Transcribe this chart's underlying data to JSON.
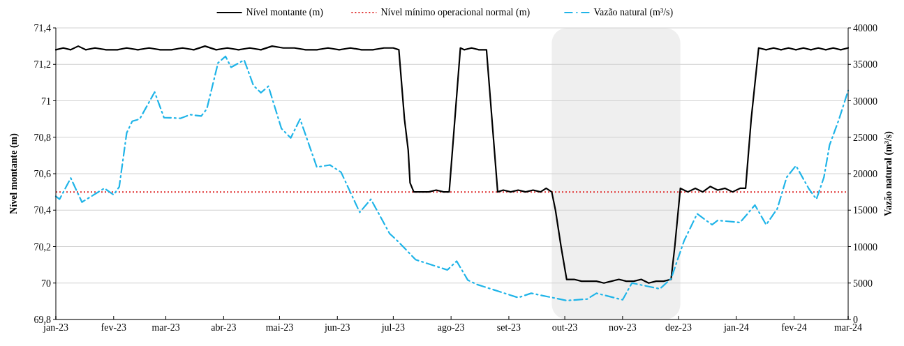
{
  "chart_data": {
    "type": "line",
    "ylabel": "Nível montante (m)",
    "y2label": "Vazão natural (m³/s)",
    "xlim": [
      "2023-01-01",
      "2024-03-01"
    ],
    "xticks": [
      {
        "value": "2023-01-01",
        "label": "jan-23"
      },
      {
        "value": "2023-02-01",
        "label": "fev-23"
      },
      {
        "value": "2023-03-01",
        "label": "mar-23"
      },
      {
        "value": "2023-04-01",
        "label": "abr-23"
      },
      {
        "value": "2023-05-01",
        "label": "mai-23"
      },
      {
        "value": "2023-06-01",
        "label": "jun-23"
      },
      {
        "value": "2023-07-01",
        "label": "jul-23"
      },
      {
        "value": "2023-08-01",
        "label": "ago-23"
      },
      {
        "value": "2023-09-01",
        "label": "set-23"
      },
      {
        "value": "2023-10-01",
        "label": "out-23"
      },
      {
        "value": "2023-11-01",
        "label": "nov-23"
      },
      {
        "value": "2023-12-01",
        "label": "dez-23"
      },
      {
        "value": "2024-01-01",
        "label": "jan-24"
      },
      {
        "value": "2024-02-01",
        "label": "fev-24"
      },
      {
        "value": "2024-03-01",
        "label": "mar-24"
      }
    ],
    "ylim": [
      69.8,
      71.4
    ],
    "yticks": [
      {
        "value": 69.8,
        "label": "69,8"
      },
      70,
      {
        "value": 70.2,
        "label": "70,2"
      },
      {
        "value": 70.4,
        "label": "70,4"
      },
      {
        "value": 70.6,
        "label": "70,6"
      },
      {
        "value": 70.8,
        "label": "70,8"
      },
      71,
      {
        "value": 71.2,
        "label": "71,2"
      },
      {
        "value": 71.4,
        "label": "71,4"
      }
    ],
    "y2lim": [
      0,
      40000
    ],
    "y2ticks": [
      0,
      5000,
      10000,
      15000,
      20000,
      25000,
      30000,
      35000,
      40000
    ],
    "grid": "y",
    "legend": "top",
    "marker": "none",
    "bands": [
      {
        "axis": "x",
        "from": "2023-09-24",
        "to": "2023-12-02",
        "color": "#efefef"
      }
    ],
    "ref_lines": [
      {
        "axis": "y",
        "value": 70.5,
        "label": "Nível mínimo operacional normal (m)",
        "color": "#e03030",
        "line_style": "dotted"
      }
    ],
    "series": [
      {
        "name": "Nível montante (m)",
        "color": "#000000",
        "line_style": "solid",
        "x": [
          "2023-01-01",
          "2023-01-05",
          "2023-01-09",
          "2023-01-13",
          "2023-01-17",
          "2023-01-22",
          "2023-01-28",
          "2023-02-03",
          "2023-02-08",
          "2023-02-14",
          "2023-02-20",
          "2023-02-26",
          "2023-03-04",
          "2023-03-10",
          "2023-03-16",
          "2023-03-22",
          "2023-03-28",
          "2023-04-03",
          "2023-04-09",
          "2023-04-15",
          "2023-04-21",
          "2023-04-27",
          "2023-05-03",
          "2023-05-09",
          "2023-05-15",
          "2023-05-21",
          "2023-05-27",
          "2023-06-02",
          "2023-06-08",
          "2023-06-14",
          "2023-06-20",
          "2023-06-26",
          "2023-07-01",
          "2023-07-04",
          "2023-07-07",
          "2023-07-09",
          "2023-07-10",
          "2023-07-12",
          "2023-07-20",
          "2023-07-24",
          "2023-07-28",
          "2023-07-31",
          "2023-08-06",
          "2023-08-08",
          "2023-08-12",
          "2023-08-16",
          "2023-08-20",
          "2023-08-26",
          "2023-08-29",
          "2023-09-02",
          "2023-09-06",
          "2023-09-10",
          "2023-09-14",
          "2023-09-18",
          "2023-09-21",
          "2023-09-24",
          "2023-09-26",
          "2023-09-29",
          "2023-10-02",
          "2023-10-06",
          "2023-10-10",
          "2023-10-14",
          "2023-10-18",
          "2023-10-22",
          "2023-10-26",
          "2023-10-30",
          "2023-11-03",
          "2023-11-07",
          "2023-11-11",
          "2023-11-15",
          "2023-11-19",
          "2023-11-23",
          "2023-11-27",
          "2023-11-29",
          "2023-12-02",
          "2023-12-06",
          "2023-12-10",
          "2023-12-14",
          "2023-12-18",
          "2023-12-22",
          "2023-12-26",
          "2023-12-30",
          "2024-01-03",
          "2024-01-06",
          "2024-01-09",
          "2024-01-13",
          "2024-01-17",
          "2024-01-21",
          "2024-01-25",
          "2024-01-29",
          "2024-02-02",
          "2024-02-06",
          "2024-02-10",
          "2024-02-14",
          "2024-02-18",
          "2024-02-22",
          "2024-02-26",
          "2024-03-01"
        ],
        "values": [
          71.28,
          71.29,
          71.28,
          71.3,
          71.28,
          71.29,
          71.28,
          71.28,
          71.29,
          71.28,
          71.29,
          71.28,
          71.28,
          71.29,
          71.28,
          71.3,
          71.28,
          71.29,
          71.28,
          71.29,
          71.28,
          71.3,
          71.29,
          71.29,
          71.28,
          71.28,
          71.29,
          71.28,
          71.29,
          71.28,
          71.28,
          71.29,
          71.29,
          71.28,
          70.9,
          70.73,
          70.55,
          70.5,
          70.5,
          70.51,
          70.5,
          70.5,
          71.29,
          71.28,
          71.29,
          71.28,
          71.28,
          70.5,
          70.51,
          70.5,
          70.51,
          70.5,
          70.51,
          70.5,
          70.52,
          70.5,
          70.4,
          70.2,
          70.02,
          70.02,
          70.01,
          70.01,
          70.01,
          70,
          70.01,
          70.02,
          70.01,
          70.01,
          70.02,
          70,
          70.01,
          70.01,
          70.02,
          70.2,
          70.52,
          70.5,
          70.52,
          70.5,
          70.53,
          70.51,
          70.52,
          70.5,
          70.52,
          70.52,
          70.9,
          71.29,
          71.28,
          71.29,
          71.28,
          71.29,
          71.28,
          71.29,
          71.28,
          71.29,
          71.28,
          71.29,
          71.28,
          71.29
        ]
      },
      {
        "name": "Vazão natural (m³/s)",
        "color": "#1fb4e8",
        "line_style": "dashed",
        "axis": "y2",
        "x": [
          "2023-01-01",
          "2023-01-03",
          "2023-01-09",
          "2023-01-15",
          "2023-01-27",
          "2023-02-01",
          "2023-02-04",
          "2023-02-08",
          "2023-02-11",
          "2023-02-15",
          "2023-02-23",
          "2023-02-28",
          "2023-03-09",
          "2023-03-14",
          "2023-03-20",
          "2023-03-23",
          "2023-03-29",
          "2023-04-02",
          "2023-04-05",
          "2023-04-12",
          "2023-04-17",
          "2023-04-21",
          "2023-04-25",
          "2023-05-02",
          "2023-05-07",
          "2023-05-12",
          "2023-05-21",
          "2023-05-28",
          "2023-06-03",
          "2023-06-13",
          "2023-06-19",
          "2023-06-29",
          "2023-07-04",
          "2023-07-13",
          "2023-07-30",
          "2023-08-04",
          "2023-08-10",
          "2023-08-15",
          "2023-09-06",
          "2023-09-13",
          "2023-10-02",
          "2023-10-13",
          "2023-10-18",
          "2023-11-01",
          "2023-11-06",
          "2023-11-21",
          "2023-11-27",
          "2023-12-04",
          "2023-12-11",
          "2023-12-19",
          "2023-12-22",
          "2024-01-03",
          "2024-01-11",
          "2024-01-17",
          "2024-01-23",
          "2024-01-28",
          "2024-02-02",
          "2024-02-09",
          "2024-02-13",
          "2024-02-17",
          "2024-02-20",
          "2024-02-25",
          "2024-03-01"
        ],
        "values": [
          16900,
          16500,
          19400,
          16100,
          18000,
          17100,
          18200,
          25600,
          27200,
          27500,
          31200,
          27700,
          27600,
          28100,
          27900,
          28900,
          35200,
          36100,
          34600,
          35600,
          32100,
          31100,
          32000,
          26200,
          24900,
          27500,
          20900,
          21200,
          20200,
          14700,
          16500,
          11800,
          10600,
          8200,
          6800,
          8000,
          5400,
          4800,
          3000,
          3600,
          2600,
          2800,
          3600,
          2700,
          5000,
          4200,
          5600,
          10800,
          14500,
          13000,
          13600,
          13300,
          15700,
          13000,
          15200,
          19500,
          21100,
          17900,
          16500,
          19500,
          23900,
          27400,
          31400
        ]
      }
    ]
  }
}
